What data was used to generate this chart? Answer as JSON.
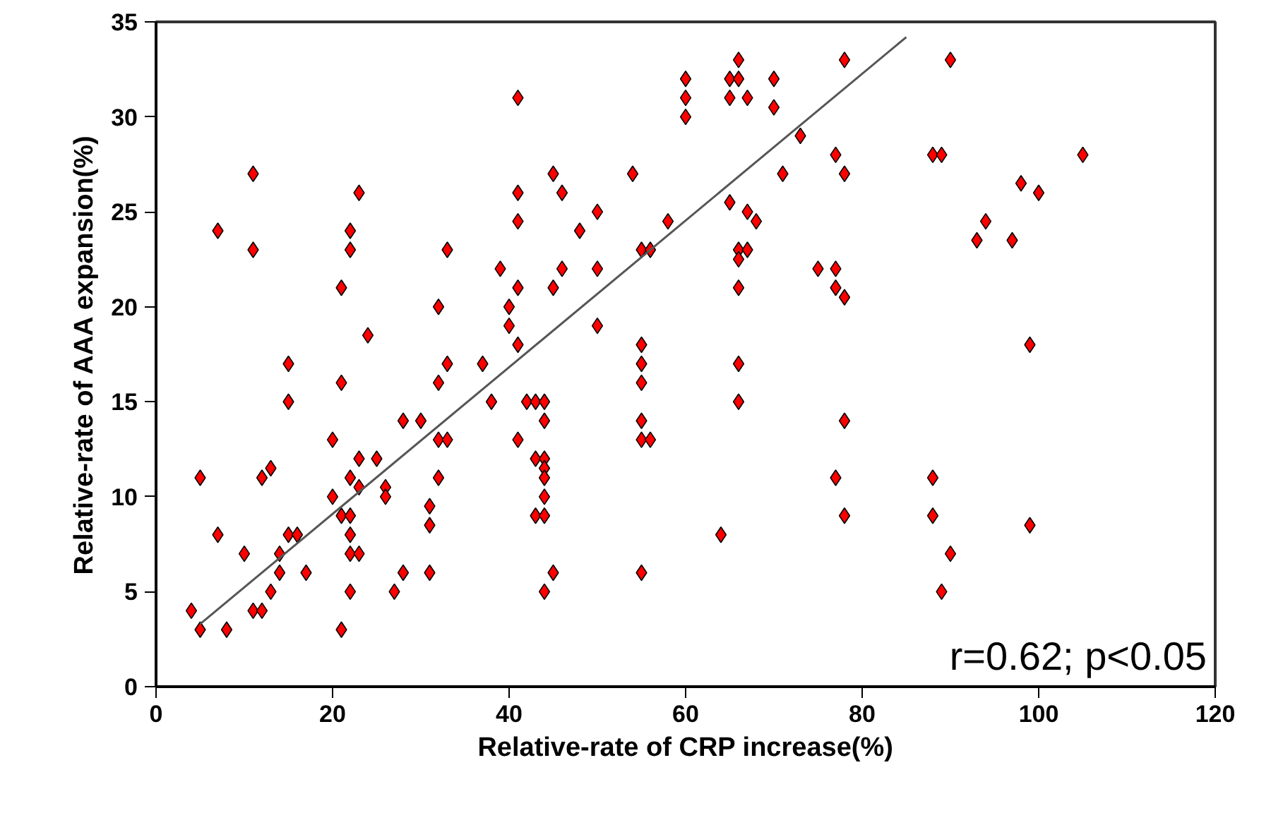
{
  "chart_data": {
    "type": "scatter",
    "xlabel": "Relative-rate of CRP increase(%)",
    "ylabel": "Relative-rate of AAA expansion(%)",
    "xlim": [
      0,
      120
    ],
    "ylim": [
      0,
      35
    ],
    "xticks": [
      0,
      20,
      40,
      60,
      80,
      100,
      120
    ],
    "yticks": [
      0,
      5,
      10,
      15,
      20,
      25,
      30,
      35
    ],
    "grid": false,
    "annotations": [
      "r=0.62; p<0.05"
    ],
    "series": [
      {
        "marker": "diamond",
        "color": "#ff0000",
        "x": [
          4,
          5,
          5,
          7,
          7,
          8,
          10,
          11,
          11,
          11,
          12,
          12,
          13,
          13,
          14,
          14,
          15,
          15,
          15,
          16,
          17,
          20,
          20,
          21,
          21,
          21,
          21,
          22,
          22,
          22,
          22,
          22,
          22,
          22,
          23,
          23,
          23,
          23,
          24,
          25,
          26,
          26,
          27,
          28,
          28,
          30,
          31,
          31,
          31,
          32,
          32,
          32,
          32,
          33,
          33,
          33,
          37,
          38,
          39,
          40,
          40,
          41,
          41,
          41,
          41,
          41,
          41,
          42,
          43,
          43,
          43,
          44,
          44,
          44,
          44,
          44,
          44,
          44,
          44,
          45,
          45,
          45,
          46,
          46,
          48,
          50,
          50,
          50,
          54,
          55,
          55,
          55,
          55,
          55,
          55,
          55,
          56,
          56,
          58,
          60,
          60,
          60,
          64,
          65,
          65,
          65,
          66,
          66,
          66,
          66,
          66,
          66,
          66,
          67,
          67,
          67,
          68,
          70,
          70,
          71,
          73,
          75,
          77,
          77,
          77,
          77,
          78,
          78,
          78,
          78,
          78,
          88,
          88,
          88,
          89,
          89,
          90,
          90,
          93,
          94,
          97,
          98,
          99,
          99,
          100,
          105
        ],
        "values": [
          4,
          3,
          11,
          24,
          8,
          3,
          7,
          27,
          23,
          4,
          11,
          4,
          11.5,
          5,
          6,
          7,
          17,
          15,
          8,
          8,
          6,
          13,
          10,
          21,
          16,
          9,
          3,
          24,
          23,
          11,
          9,
          8,
          5,
          7,
          26,
          12,
          10.5,
          7,
          18.5,
          12,
          10.5,
          10,
          5,
          14,
          6,
          14,
          9.5,
          8.5,
          6,
          20,
          16,
          13,
          11,
          23,
          17,
          13,
          17,
          15,
          22,
          20,
          19,
          31,
          26,
          24.5,
          21,
          18,
          13,
          15,
          15,
          12,
          9,
          15,
          12,
          11.5,
          11,
          14,
          10,
          9,
          5,
          27,
          21,
          6,
          26,
          22,
          24,
          25,
          22,
          19,
          27,
          23,
          18,
          17,
          16,
          14,
          13,
          6,
          23,
          13,
          24.5,
          32,
          31,
          30,
          8,
          32,
          31,
          25.5,
          33,
          32,
          23,
          22.5,
          21,
          17,
          15,
          31,
          25,
          23,
          24.5,
          32,
          30.5,
          27,
          29,
          22,
          28,
          22,
          21,
          11,
          33,
          27,
          20.5,
          14,
          9,
          28,
          11,
          9,
          28,
          5,
          33,
          7,
          23.5,
          24.5,
          23.5,
          26.5,
          18,
          8.5,
          26,
          28
        ]
      },
      {
        "type": "line",
        "marker": "none",
        "color": "#555555",
        "x": [
          5,
          85
        ],
        "values": [
          3.3,
          34.2
        ]
      }
    ]
  }
}
